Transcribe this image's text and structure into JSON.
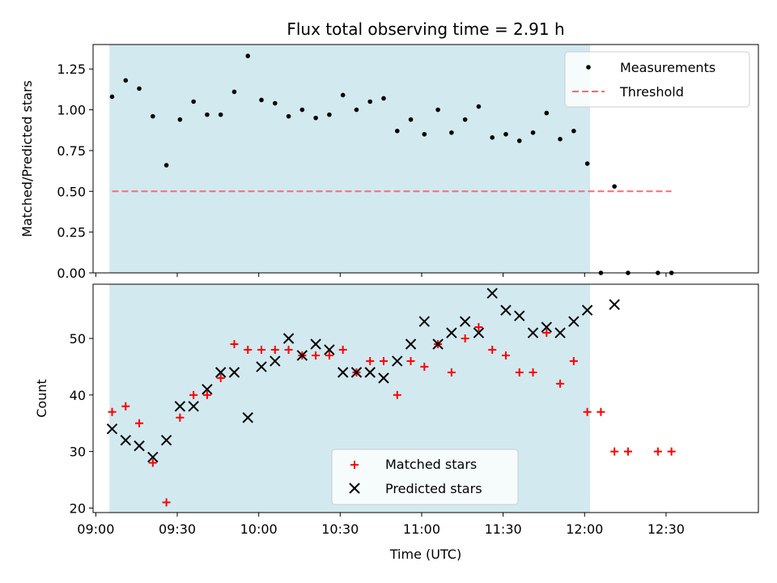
{
  "chart_data": [
    {
      "type": "scatter",
      "title": "Flux total observing time = 2.91 h",
      "xlabel": "",
      "ylabel": "Matched/Predicted stars",
      "xlim": [
        "08:59",
        "13:04"
      ],
      "ylim": [
        0,
        1.4
      ],
      "yticks": [
        "0.00",
        "0.25",
        "0.50",
        "0.75",
        "1.00",
        "1.25"
      ],
      "shaded_region": {
        "x_start": "09:05",
        "x_end": "12:02",
        "color": "#d2e9f0"
      },
      "legend_position": "top-right",
      "legend": [
        "Measurements",
        "Threshold"
      ],
      "series": [
        {
          "name": "Measurements",
          "marker": "dot",
          "color": "#000000",
          "points": [
            [
              "09:06",
              1.08
            ],
            [
              "09:11",
              1.18
            ],
            [
              "09:16",
              1.13
            ],
            [
              "09:21",
              0.96
            ],
            [
              "09:26",
              0.66
            ],
            [
              "09:31",
              0.94
            ],
            [
              "09:36",
              1.05
            ],
            [
              "09:41",
              0.97
            ],
            [
              "09:46",
              0.97
            ],
            [
              "09:51",
              1.11
            ],
            [
              "09:56",
              1.33
            ],
            [
              "10:01",
              1.06
            ],
            [
              "10:06",
              1.04
            ],
            [
              "10:11",
              0.96
            ],
            [
              "10:16",
              1.0
            ],
            [
              "10:21",
              0.95
            ],
            [
              "10:26",
              0.97
            ],
            [
              "10:31",
              1.09
            ],
            [
              "10:36",
              1.0
            ],
            [
              "10:41",
              1.05
            ],
            [
              "10:46",
              1.07
            ],
            [
              "10:51",
              0.87
            ],
            [
              "10:56",
              0.94
            ],
            [
              "11:01",
              0.85
            ],
            [
              "11:06",
              1.0
            ],
            [
              "11:11",
              0.86
            ],
            [
              "11:16",
              0.94
            ],
            [
              "11:21",
              1.02
            ],
            [
              "11:26",
              0.83
            ],
            [
              "11:31",
              0.85
            ],
            [
              "11:36",
              0.81
            ],
            [
              "11:41",
              0.86
            ],
            [
              "11:46",
              0.98
            ],
            [
              "11:51",
              0.82
            ],
            [
              "11:56",
              0.87
            ],
            [
              "12:01",
              0.67
            ],
            [
              "12:06",
              0.0
            ],
            [
              "12:11",
              0.53
            ],
            [
              "12:16",
              0.0
            ],
            [
              "12:27",
              0.0
            ],
            [
              "12:32",
              0.0
            ]
          ]
        },
        {
          "name": "Threshold",
          "marker": "dashed-line",
          "color": "#f07070",
          "points": [
            [
              "09:06",
              0.5
            ],
            [
              "12:32",
              0.5
            ]
          ]
        }
      ]
    },
    {
      "type": "scatter",
      "title": "",
      "xlabel": "Time (UTC)",
      "ylabel": "Count",
      "xlim": [
        "08:59",
        "13:04"
      ],
      "ylim": [
        19.2,
        59.6
      ],
      "xticks": [
        "09:00",
        "09:30",
        "10:00",
        "10:30",
        "11:00",
        "11:30",
        "12:00",
        "12:30"
      ],
      "yticks": [
        "20",
        "30",
        "40",
        "50"
      ],
      "shaded_region": {
        "x_start": "09:05",
        "x_end": "12:02",
        "color": "#d2e9f0"
      },
      "legend_position": "lower-center",
      "legend": [
        "Matched stars",
        "Predicted stars"
      ],
      "series": [
        {
          "name": "Matched stars",
          "marker": "plus",
          "color": "#ff0000",
          "points": [
            [
              "09:06",
              37
            ],
            [
              "09:11",
              38
            ],
            [
              "09:16",
              35
            ],
            [
              "09:21",
              28
            ],
            [
              "09:26",
              21
            ],
            [
              "09:31",
              36
            ],
            [
              "09:36",
              40
            ],
            [
              "09:41",
              40
            ],
            [
              "09:46",
              43
            ],
            [
              "09:51",
              49
            ],
            [
              "09:56",
              48
            ],
            [
              "10:01",
              48
            ],
            [
              "10:06",
              48
            ],
            [
              "10:11",
              48
            ],
            [
              "10:16",
              47
            ],
            [
              "10:21",
              47
            ],
            [
              "10:26",
              47
            ],
            [
              "10:31",
              48
            ],
            [
              "10:36",
              44
            ],
            [
              "10:41",
              46
            ],
            [
              "10:46",
              46
            ],
            [
              "10:51",
              40
            ],
            [
              "10:56",
              46
            ],
            [
              "11:01",
              45
            ],
            [
              "11:06",
              49
            ],
            [
              "11:11",
              44
            ],
            [
              "11:16",
              50
            ],
            [
              "11:21",
              52
            ],
            [
              "11:26",
              48
            ],
            [
              "11:31",
              47
            ],
            [
              "11:36",
              44
            ],
            [
              "11:41",
              44
            ],
            [
              "11:46",
              51
            ],
            [
              "11:51",
              42
            ],
            [
              "11:56",
              46
            ],
            [
              "12:01",
              37
            ],
            [
              "12:06",
              37
            ],
            [
              "12:11",
              30
            ],
            [
              "12:16",
              30
            ],
            [
              "12:27",
              30
            ],
            [
              "12:32",
              30
            ]
          ]
        },
        {
          "name": "Predicted stars",
          "marker": "x",
          "color": "#000000",
          "points": [
            [
              "09:06",
              34
            ],
            [
              "09:11",
              32
            ],
            [
              "09:16",
              31
            ],
            [
              "09:21",
              29
            ],
            [
              "09:26",
              32
            ],
            [
              "09:31",
              38
            ],
            [
              "09:36",
              38
            ],
            [
              "09:41",
              41
            ],
            [
              "09:46",
              44
            ],
            [
              "09:51",
              44
            ],
            [
              "09:56",
              36
            ],
            [
              "10:01",
              45
            ],
            [
              "10:06",
              46
            ],
            [
              "10:11",
              50
            ],
            [
              "10:16",
              47
            ],
            [
              "10:21",
              49
            ],
            [
              "10:26",
              48
            ],
            [
              "10:31",
              44
            ],
            [
              "10:36",
              44
            ],
            [
              "10:41",
              44
            ],
            [
              "10:46",
              43
            ],
            [
              "10:51",
              46
            ],
            [
              "10:56",
              49
            ],
            [
              "11:01",
              53
            ],
            [
              "11:06",
              49
            ],
            [
              "11:11",
              51
            ],
            [
              "11:16",
              53
            ],
            [
              "11:21",
              51
            ],
            [
              "11:26",
              58
            ],
            [
              "11:31",
              55
            ],
            [
              "11:36",
              54
            ],
            [
              "11:41",
              51
            ],
            [
              "11:46",
              52
            ],
            [
              "11:51",
              51
            ],
            [
              "11:56",
              53
            ],
            [
              "12:01",
              55
            ],
            [
              "12:11",
              56
            ]
          ]
        }
      ]
    }
  ]
}
